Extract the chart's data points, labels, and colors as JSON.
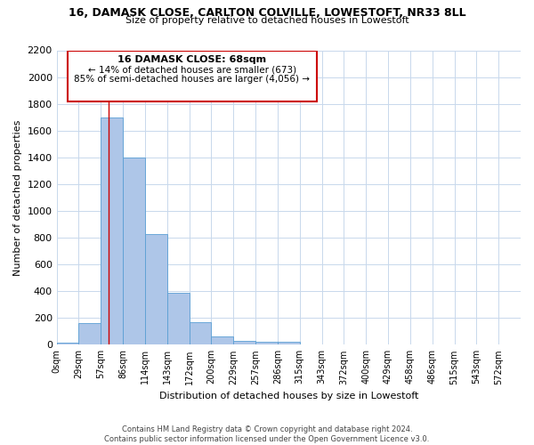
{
  "title": "16, DAMASK CLOSE, CARLTON COLVILLE, LOWESTOFT, NR33 8LL",
  "subtitle": "Size of property relative to detached houses in Lowestoft",
  "xlabel": "Distribution of detached houses by size in Lowestoft",
  "ylabel": "Number of detached properties",
  "bin_labels": [
    "0sqm",
    "29sqm",
    "57sqm",
    "86sqm",
    "114sqm",
    "143sqm",
    "172sqm",
    "200sqm",
    "229sqm",
    "257sqm",
    "286sqm",
    "315sqm",
    "343sqm",
    "372sqm",
    "400sqm",
    "429sqm",
    "458sqm",
    "486sqm",
    "515sqm",
    "543sqm",
    "572sqm"
  ],
  "bar_heights": [
    15,
    160,
    1700,
    1400,
    830,
    390,
    165,
    65,
    30,
    25,
    20,
    0,
    0,
    0,
    0,
    0,
    0,
    0,
    0,
    0,
    0
  ],
  "bar_color": "#aec6e8",
  "bar_edge_color": "#5a9fd4",
  "property_line_x": 68,
  "property_line_color": "#cc0000",
  "ylim": [
    0,
    2200
  ],
  "yticks": [
    0,
    200,
    400,
    600,
    800,
    1000,
    1200,
    1400,
    1600,
    1800,
    2000,
    2200
  ],
  "annotation_text_line1": "16 DAMASK CLOSE: 68sqm",
  "annotation_text_line2": "← 14% of detached houses are smaller (673)",
  "annotation_text_line3": "85% of semi-detached houses are larger (4,056) →",
  "footer_line1": "Contains HM Land Registry data © Crown copyright and database right 2024.",
  "footer_line2": "Contains public sector information licensed under the Open Government Licence v3.0.",
  "bin_width": 29,
  "background_color": "#ffffff",
  "grid_color": "#c8d8ec"
}
